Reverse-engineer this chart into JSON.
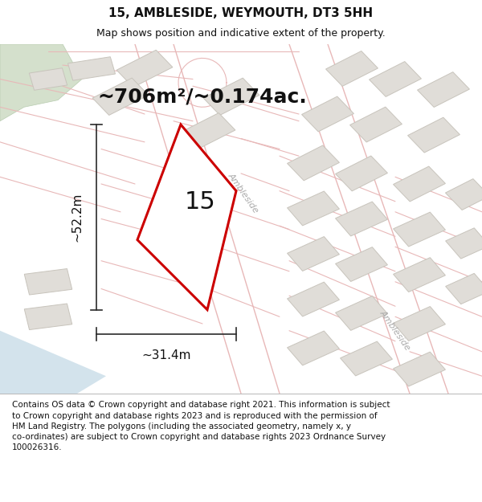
{
  "title": "15, AMBLESIDE, WEYMOUTH, DT3 5HH",
  "subtitle": "Map shows position and indicative extent of the property.",
  "area_label": "~706m²/~0.174ac.",
  "width_label": "~31.4m",
  "height_label": "~52.2m",
  "plot_number": "15",
  "street_label_1": "Ambleside",
  "street_label_2": "Ambleside",
  "footer_text": "Contains OS data © Crown copyright and database right 2021. This information is subject to Crown copyright and database rights 2023 and is reproduced with the permission of HM Land Registry. The polygons (including the associated geometry, namely x, y co-ordinates) are subject to Crown copyright and database rights 2023 Ordnance Survey 100026316.",
  "bg_map": "#f7f5f2",
  "plot_outline_color": "#cc0000",
  "road_line_color": "#e8b8b8",
  "building_fc": "#e0ddd8",
  "building_ec": "#c8c4bc",
  "green_fc": "#d4e0cc",
  "green_ec": "#b8ccb0",
  "river_fc": "#c8dce8",
  "dim_line_color": "#2a2a2a",
  "title_fontsize": 11,
  "subtitle_fontsize": 9,
  "area_fontsize": 18,
  "dim_fontsize": 11,
  "plot_num_fontsize": 22,
  "footer_fontsize": 7.5,
  "street_fontsize": 8
}
